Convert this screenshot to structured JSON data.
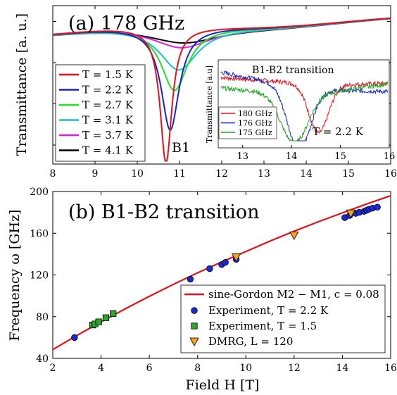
{
  "chart_data": [
    {
      "type": "line",
      "panel": "(a)",
      "title": "(a) 178 GHz",
      "xlabel": "",
      "ylabel": "Transmittance [a. u.]",
      "xlim": [
        8,
        16
      ],
      "x_ticks": [
        8,
        9,
        10,
        11,
        12,
        13,
        14,
        15,
        16
      ],
      "yticks_labeled": false,
      "grid": false,
      "legend_position": "bottom-left",
      "annotation": "B1",
      "series": [
        {
          "name": "T = 1.5 K",
          "color": "#e8111b",
          "base": 0.87,
          "dip_center": 10.68,
          "dip_depth": 0.86,
          "dip_width": 0.17,
          "tail": 0.3
        },
        {
          "name": "T = 2.2 K",
          "color": "#1624d6",
          "base": 0.87,
          "dip_center": 10.78,
          "dip_depth": 0.65,
          "dip_width": 0.26,
          "tail": 0.28
        },
        {
          "name": "T = 2.7 K",
          "color": "#22e322",
          "base": 0.87,
          "dip_center": 10.88,
          "dip_depth": 0.4,
          "dip_width": 0.38,
          "tail": 0.26
        },
        {
          "name": "T = 3.1 K",
          "color": "#16c4c4",
          "base": 0.87,
          "dip_center": 10.98,
          "dip_depth": 0.27,
          "dip_width": 0.55,
          "tail": 0.24
        },
        {
          "name": "T = 3.7 K",
          "color": "#e21ee2",
          "base": 0.87,
          "dip_center": 11.05,
          "dip_depth": 0.13,
          "dip_width": 0.85,
          "tail": 0.2
        },
        {
          "name": "T = 4.1 K",
          "color": "#000000",
          "base": 0.87,
          "dip_center": 11.1,
          "dip_depth": 0.1,
          "dip_width": 1.05,
          "tail": 0.18
        }
      ],
      "inset": {
        "title": "B1-B2 transition",
        "ylabel": "Transmittance [a.u]",
        "xlim": [
          12.5,
          16
        ],
        "x_ticks": [
          13,
          14,
          15,
          16
        ],
        "annotation": "T = 2.2 K",
        "series": [
          {
            "name": "180 GHz",
            "color": "#e8111b",
            "dip_center": 14.55,
            "dip_depth": 0.55
          },
          {
            "name": "176 GHz",
            "color": "#1624d6",
            "dip_center": 14.15,
            "dip_depth": 0.7
          },
          {
            "name": "175 GHz",
            "color": "#22a322",
            "dip_center": 14.05,
            "dip_depth": 0.55
          }
        ]
      }
    },
    {
      "type": "scatter",
      "panel": "(b)",
      "title": "(b) B1-B2 transition",
      "xlabel": "Field H [T]",
      "ylabel": "Frequency ω [GHz]",
      "xlim": [
        2,
        16
      ],
      "ylim": [
        40,
        200
      ],
      "x_ticks": [
        2,
        4,
        6,
        8,
        10,
        12,
        14,
        16
      ],
      "y_ticks": [
        40,
        80,
        120,
        160,
        200
      ],
      "grid": false,
      "legend_position": "bottom-right",
      "legend": [
        "sine-Gordon M2 − M1, c = 0.08",
        "Experiment, T = 2.2 K",
        "Experiment, T = 1.5",
        "DMRG, L = 120"
      ],
      "curve": {
        "name": "sine-Gordon M2 − M1, c = 0.08",
        "color": "#e8111b",
        "x": [
          2,
          3,
          4,
          5,
          6,
          7,
          8,
          9,
          10,
          11,
          12,
          13,
          14,
          15,
          16
        ],
        "y": [
          48.5,
          62,
          75,
          87.5,
          99.5,
          111,
          122,
          132.5,
          142.5,
          152.5,
          162,
          171,
          179.5,
          188,
          196
        ]
      },
      "experiment_2_2K": {
        "name": "Experiment, T = 2.2 K",
        "color": "#1a2bd6",
        "x": [
          2.9,
          7.7,
          8.5,
          9.0,
          9.15,
          9.6,
          14.1,
          14.3,
          14.55,
          14.7,
          14.9,
          15.0,
          15.1,
          15.25,
          15.45
        ],
        "y": [
          60,
          116,
          126,
          130,
          132,
          135,
          175,
          177,
          179,
          180,
          181,
          182,
          183,
          184,
          185
        ]
      },
      "experiment_1_5K": {
        "name": "Experiment, T = 1.5",
        "color": "#2aa82a",
        "x": [
          3.65,
          3.75,
          3.9,
          4.2,
          4.5
        ],
        "y": [
          72,
          73,
          75,
          79,
          83
        ]
      },
      "dmrg": {
        "name": "DMRG, L = 120",
        "color": "#f7a21b",
        "x": [
          9.6,
          12.0,
          14.35
        ],
        "y": [
          137,
          158,
          179
        ]
      }
    }
  ]
}
